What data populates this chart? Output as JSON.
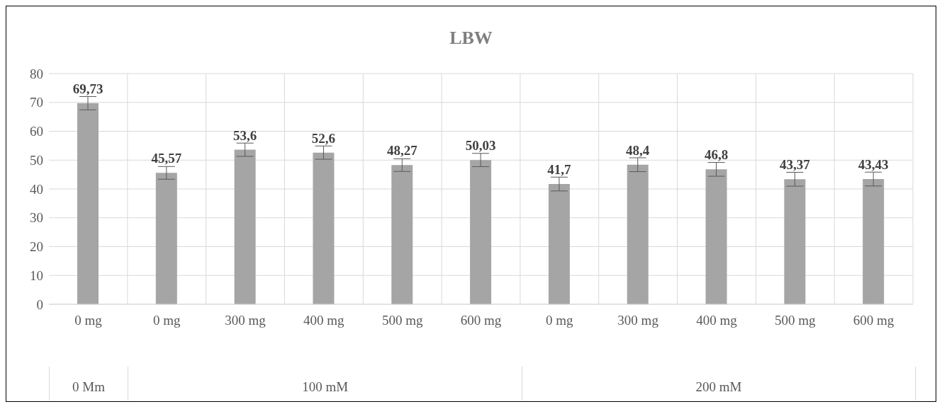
{
  "chart_data": {
    "type": "bar",
    "title": "LBW",
    "categories": [
      "0 mg",
      "0 mg",
      "300 mg",
      "400 mg",
      "500 mg",
      "600 mg",
      "0 mg",
      "300 mg",
      "400 mg",
      "500 mg",
      "600 mg"
    ],
    "values": [
      69.73,
      45.57,
      53.6,
      52.6,
      48.27,
      50.03,
      41.7,
      48.4,
      46.8,
      43.37,
      43.43
    ],
    "value_labels": [
      "69,73",
      "45,57",
      "53,6",
      "52,6",
      "48,27",
      "50,03",
      "41,7",
      "48,4",
      "46,8",
      "43,37",
      "43,43"
    ],
    "errors": [
      2.3,
      2.2,
      2.3,
      2.3,
      2.2,
      2.3,
      2.4,
      2.4,
      2.4,
      2.4,
      2.4
    ],
    "color": "#a5a5a5",
    "annotations": [
      "0 Mm",
      "100 mM",
      "200 mM"
    ],
    "ylim": [
      0,
      80
    ],
    "yticks": [
      0,
      10,
      20,
      30,
      40,
      50,
      60,
      70,
      80
    ],
    "grid": true
  }
}
